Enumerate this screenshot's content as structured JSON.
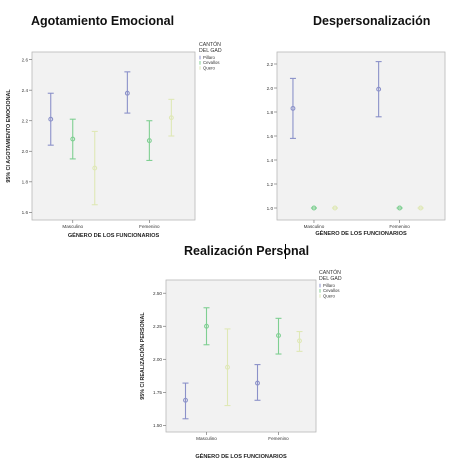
{
  "titles": {
    "agotamiento": "Agotamiento Emocional",
    "despersonalizacion": "Despersonalización",
    "realizacion": "Realización Personal"
  },
  "chart_data": [
    {
      "type": "scatter",
      "title": "Agotamiento Emocional",
      "xlabel": "GÉNERO DE LOS FUNCIONARIOS",
      "ylabel": "95% CI AGOTAMIENTO EMOCIONAL",
      "categories": [
        "Masculino",
        "Femenino"
      ],
      "ylim": [
        1.55,
        2.65
      ],
      "yticks": [
        1.6,
        1.8,
        2.0,
        2.2,
        2.4,
        2.6
      ],
      "ytick_labels": [
        "1.6",
        "1.8",
        "2.0",
        "2.2",
        "2.4",
        "2.6"
      ],
      "legend_title": "CANTÓN DEL GAD",
      "legend_position": "right",
      "grid": false,
      "series": [
        {
          "name": "Pillaro",
          "color": "#8b91c9",
          "points": [
            {
              "mean": 2.21,
              "lower": 2.04,
              "upper": 2.38
            },
            {
              "mean": 2.38,
              "lower": 2.25,
              "upper": 2.52
            }
          ]
        },
        {
          "name": "Cevallos",
          "color": "#7fcf92",
          "points": [
            {
              "mean": 2.08,
              "lower": 1.95,
              "upper": 2.21
            },
            {
              "mean": 2.07,
              "lower": 1.94,
              "upper": 2.2
            }
          ]
        },
        {
          "name": "Quero",
          "color": "#dfe8b6",
          "points": [
            {
              "mean": 1.89,
              "lower": 1.65,
              "upper": 2.13
            },
            {
              "mean": 2.22,
              "lower": 2.1,
              "upper": 2.34
            }
          ]
        }
      ]
    },
    {
      "type": "scatter",
      "title": "Despersonalización",
      "xlabel": "GÉNERO DE LOS FUNCIONARIOS",
      "ylabel": "95% CI DESPERSONALIZACIÓN",
      "categories": [
        "Masculino",
        "Femenino"
      ],
      "ylim": [
        0.9,
        2.3
      ],
      "yticks": [
        1.0,
        1.2,
        1.4,
        1.6,
        1.8,
        2.0,
        2.2
      ],
      "ytick_labels": [
        "1.0",
        "1.2",
        "1.4",
        "1.6",
        "1.8",
        "2.0",
        "2.2"
      ],
      "grid": false,
      "series": [
        {
          "name": "Pillaro",
          "color": "#8b91c9",
          "points": [
            {
              "mean": 1.83,
              "lower": 1.58,
              "upper": 2.08
            },
            {
              "mean": 1.99,
              "lower": 1.76,
              "upper": 2.22
            }
          ]
        },
        {
          "name": "Cevallos",
          "color": "#7fcf92",
          "points": [
            {
              "mean": 1.0,
              "lower": 1.0,
              "upper": 1.0
            },
            {
              "mean": 1.0,
              "lower": 1.0,
              "upper": 1.0
            }
          ]
        },
        {
          "name": "Quero",
          "color": "#dfe8b6",
          "points": [
            {
              "mean": 1.0,
              "lower": 1.0,
              "upper": 1.0
            },
            {
              "mean": 1.0,
              "lower": 1.0,
              "upper": 1.0
            }
          ]
        }
      ]
    },
    {
      "type": "scatter",
      "title": "Realización Personal",
      "xlabel": "GÉNERO DE LOS FUNCIONARIOS",
      "ylabel": "95% CI REALIZACIÓN PERSONAL",
      "categories": [
        "Masculino",
        "Femenino"
      ],
      "ylim": [
        1.45,
        2.6
      ],
      "yticks": [
        1.5,
        1.75,
        2.0,
        2.25,
        2.5
      ],
      "ytick_labels": [
        "1.50",
        "1.75",
        "2.00",
        "2.25",
        "2.50"
      ],
      "legend_title": "CANTÓN DEL GAD",
      "legend_position": "right",
      "grid": false,
      "series": [
        {
          "name": "Pillaro",
          "color": "#8b91c9",
          "points": [
            {
              "mean": 1.69,
              "lower": 1.55,
              "upper": 1.82
            },
            {
              "mean": 1.82,
              "lower": 1.69,
              "upper": 1.96
            }
          ]
        },
        {
          "name": "Cevallos",
          "color": "#7fcf92",
          "points": [
            {
              "mean": 2.25,
              "lower": 2.11,
              "upper": 2.39
            },
            {
              "mean": 2.18,
              "lower": 2.04,
              "upper": 2.31
            }
          ]
        },
        {
          "name": "Quero",
          "color": "#dfe8b6",
          "points": [
            {
              "mean": 1.94,
              "lower": 1.65,
              "upper": 2.23
            },
            {
              "mean": 2.14,
              "lower": 2.06,
              "upper": 2.21
            }
          ]
        }
      ]
    }
  ]
}
